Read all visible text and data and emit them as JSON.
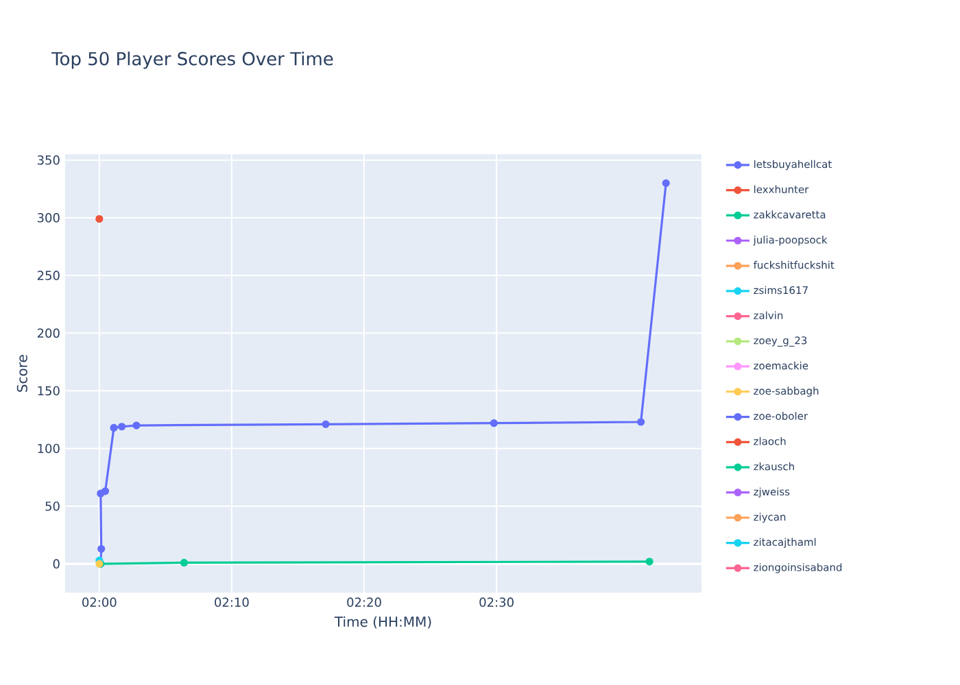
{
  "chart_data": {
    "type": "line",
    "title": "Top 50 Player Scores Over Time",
    "xlabel": "Time (HH:MM)",
    "ylabel": "Score",
    "xlim": [
      1.957,
      2.758
    ],
    "ylim": [
      -25,
      355
    ],
    "xticks": [
      {
        "value": 2.0,
        "label": "02:00"
      },
      {
        "value": 2.1666667,
        "label": "02:10"
      },
      {
        "value": 2.3333333,
        "label": "02:20"
      },
      {
        "value": 2.5,
        "label": "02:30"
      }
    ],
    "yticks": [
      0,
      50,
      100,
      150,
      200,
      250,
      300,
      350
    ],
    "grid": true,
    "legend": "right",
    "marker": "circle",
    "line_style": "solid",
    "series": [
      {
        "name": "letsbuyahellcat",
        "color": "#636efa",
        "x": [
          2.0017,
          2.0025,
          2.0017,
          2.0075,
          2.0183,
          2.0283,
          2.0467,
          2.285,
          2.4967,
          2.6817,
          2.7133
        ],
        "values": [
          0,
          13,
          61,
          63,
          118,
          119,
          120,
          121,
          122,
          123,
          330
        ]
      },
      {
        "name": "lexxhunter",
        "color": "#ef553b",
        "x": [
          2.0
        ],
        "values": [
          299
        ]
      },
      {
        "name": "zakkcavaretta",
        "color": "#00cc96",
        "x": [
          2.0017,
          2.1067,
          2.6925
        ],
        "values": [
          0,
          1,
          2
        ]
      },
      {
        "name": "julia-poopsock",
        "color": "#ab63fa"
      },
      {
        "name": "fuckshitfuckshit",
        "color": "#ffa15a"
      },
      {
        "name": "zsims1617",
        "color": "#19d3f3",
        "x": [
          2.0
        ],
        "values": [
          3
        ]
      },
      {
        "name": "zalvin",
        "color": "#ff6692"
      },
      {
        "name": "zoey_g_23",
        "color": "#b6e880"
      },
      {
        "name": "zoemackie",
        "color": "#ff97ff"
      },
      {
        "name": "zoe-sabbagh",
        "color": "#fecb52",
        "x": [
          2.0
        ],
        "values": [
          0
        ]
      },
      {
        "name": "zoe-oboler",
        "color": "#636efa"
      },
      {
        "name": "zlaoch",
        "color": "#ef553b"
      },
      {
        "name": "zkausch",
        "color": "#00cc96"
      },
      {
        "name": "zjweiss",
        "color": "#ab63fa"
      },
      {
        "name": "ziycan",
        "color": "#ffa15a"
      },
      {
        "name": "zitacajthaml",
        "color": "#19d3f3"
      },
      {
        "name": "ziongoinsisaband",
        "color": "#ff6692"
      }
    ]
  }
}
